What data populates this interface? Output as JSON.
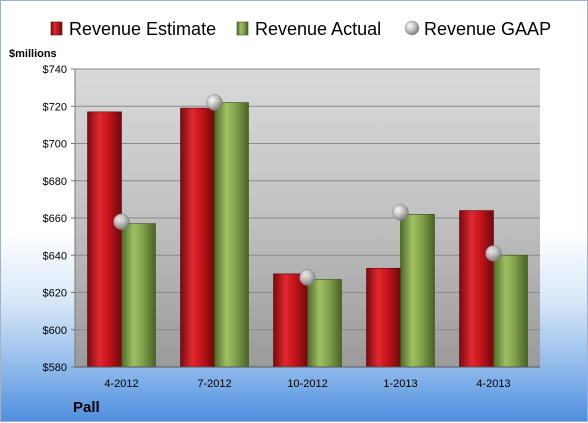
{
  "company_label": "Pall",
  "chart_data": {
    "type": "bar",
    "title": "",
    "xlabel": "",
    "ylabel": "$millions",
    "categories": [
      "4-2012",
      "7-2012",
      "10-2012",
      "1-2013",
      "4-2013"
    ],
    "series": [
      {
        "name": "Revenue Estimate",
        "kind": "bar",
        "color": "#c0141c",
        "values": [
          717,
          719,
          630,
          633,
          664
        ]
      },
      {
        "name": "Revenue Actual",
        "kind": "bar",
        "color": "#7fa04a",
        "values": [
          657,
          722,
          627,
          662,
          640
        ]
      },
      {
        "name": "Revenue GAAP",
        "kind": "marker",
        "color": "#b4b4b4",
        "values": [
          658,
          722,
          628,
          663,
          641
        ]
      }
    ],
    "ylim": [
      580,
      740
    ],
    "yticks": [
      "$580",
      "$600",
      "$620",
      "$640",
      "$660",
      "$680",
      "$700",
      "$720",
      "$740"
    ],
    "grid": true,
    "legend": "top"
  }
}
